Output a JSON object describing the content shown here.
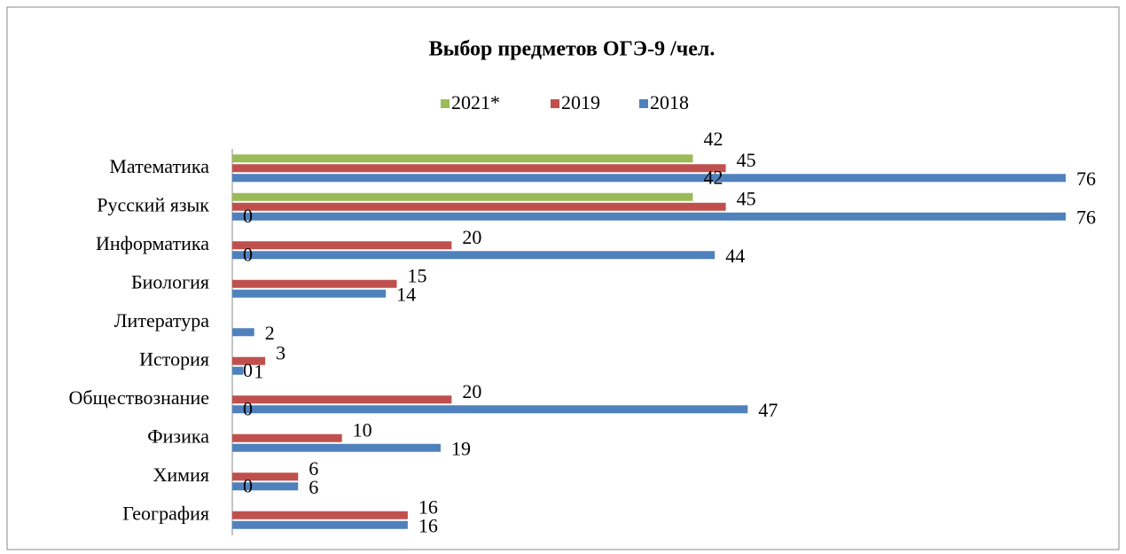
{
  "chart_data": {
    "type": "barh",
    "title": "Выбор предметов ОГЭ-9 /чел.",
    "categories": [
      "Математика",
      "Русский язык",
      "Информатика",
      "Биология",
      "Литература",
      "История",
      "Обществознание",
      "Физика",
      "Химия",
      "География"
    ],
    "series": [
      {
        "name": "2021*",
        "color": "#9bbb59",
        "values": [
          42,
          42,
          0,
          0,
          null,
          null,
          0,
          0,
          null,
          0
        ]
      },
      {
        "name": "2019",
        "color": "#c0504d",
        "values": [
          45,
          45,
          20,
          15,
          null,
          3,
          20,
          10,
          6,
          16
        ]
      },
      {
        "name": "2018",
        "color": "#4f81bd",
        "values": [
          76,
          76,
          44,
          14,
          2,
          1,
          47,
          19,
          6,
          16
        ]
      }
    ]
  }
}
